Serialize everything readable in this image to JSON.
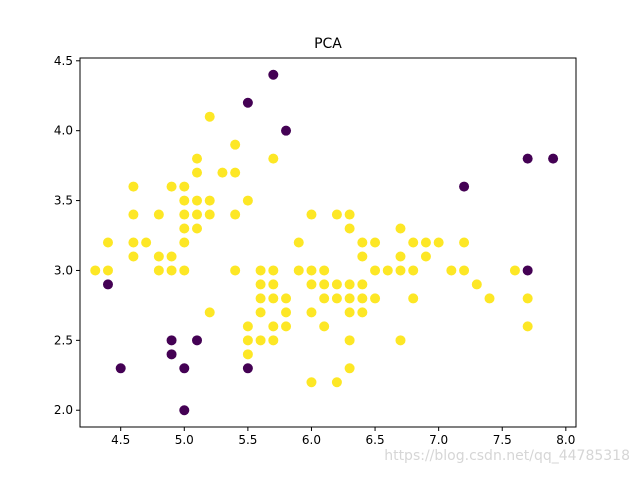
{
  "watermark": "https://blog.csdn.net/qq_44785318",
  "chart_data": {
    "type": "scatter",
    "title": "PCA",
    "xlabel": "",
    "ylabel": "",
    "xlim": [
      4.18,
      8.08
    ],
    "ylim": [
      1.88,
      4.52
    ],
    "xticks": [
      4.5,
      5.0,
      5.5,
      6.0,
      6.5,
      7.0,
      7.5,
      8.0
    ],
    "xtick_labels": [
      "4.5",
      "5.0",
      "5.5",
      "6.0",
      "6.5",
      "7.0",
      "7.5",
      "8.0"
    ],
    "yticks": [
      2.0,
      2.5,
      3.0,
      3.5,
      4.0,
      4.5
    ],
    "ytick_labels": [
      "2.0",
      "2.5",
      "3.0",
      "3.5",
      "4.0",
      "4.5"
    ],
    "grid": false,
    "legend": "none",
    "colors": {
      "class_0": "#440154",
      "class_1": "#fde725"
    },
    "series": [
      {
        "color": "#fde725",
        "points": [
          [
            4.3,
            3.0
          ],
          [
            4.4,
            3.0
          ],
          [
            4.4,
            3.2
          ],
          [
            4.6,
            3.1
          ],
          [
            4.6,
            3.2
          ],
          [
            4.6,
            3.4
          ],
          [
            4.6,
            3.6
          ],
          [
            4.7,
            3.2
          ],
          [
            4.8,
            3.0
          ],
          [
            4.8,
            3.1
          ],
          [
            4.8,
            3.4
          ],
          [
            4.9,
            3.0
          ],
          [
            4.9,
            3.1
          ],
          [
            4.9,
            3.6
          ],
          [
            5.0,
            3.0
          ],
          [
            5.0,
            3.2
          ],
          [
            5.0,
            3.3
          ],
          [
            5.0,
            3.4
          ],
          [
            5.0,
            3.5
          ],
          [
            5.0,
            3.6
          ],
          [
            5.1,
            3.3
          ],
          [
            5.1,
            3.4
          ],
          [
            5.1,
            3.5
          ],
          [
            5.1,
            3.7
          ],
          [
            5.1,
            3.8
          ],
          [
            5.2,
            2.7
          ],
          [
            5.2,
            3.4
          ],
          [
            5.2,
            3.5
          ],
          [
            5.2,
            4.1
          ],
          [
            5.3,
            3.7
          ],
          [
            5.4,
            3.0
          ],
          [
            5.4,
            3.4
          ],
          [
            5.4,
            3.7
          ],
          [
            5.4,
            3.9
          ],
          [
            5.5,
            2.4
          ],
          [
            5.5,
            2.5
          ],
          [
            5.5,
            2.6
          ],
          [
            5.5,
            3.5
          ],
          [
            5.6,
            2.5
          ],
          [
            5.6,
            2.7
          ],
          [
            5.6,
            2.8
          ],
          [
            5.6,
            2.9
          ],
          [
            5.6,
            3.0
          ],
          [
            5.7,
            2.5
          ],
          [
            5.7,
            2.6
          ],
          [
            5.7,
            2.8
          ],
          [
            5.7,
            2.9
          ],
          [
            5.7,
            3.0
          ],
          [
            5.7,
            3.8
          ],
          [
            5.8,
            2.6
          ],
          [
            5.8,
            2.7
          ],
          [
            5.8,
            2.8
          ],
          [
            5.9,
            3.0
          ],
          [
            5.9,
            3.2
          ],
          [
            6.0,
            2.2
          ],
          [
            6.0,
            2.7
          ],
          [
            6.0,
            2.9
          ],
          [
            6.0,
            3.0
          ],
          [
            6.0,
            3.4
          ],
          [
            6.1,
            2.6
          ],
          [
            6.1,
            2.8
          ],
          [
            6.1,
            2.9
          ],
          [
            6.1,
            3.0
          ],
          [
            6.2,
            2.2
          ],
          [
            6.2,
            2.8
          ],
          [
            6.2,
            2.9
          ],
          [
            6.2,
            3.4
          ],
          [
            6.3,
            2.3
          ],
          [
            6.3,
            2.5
          ],
          [
            6.3,
            2.7
          ],
          [
            6.3,
            2.8
          ],
          [
            6.3,
            2.9
          ],
          [
            6.3,
            3.3
          ],
          [
            6.3,
            3.4
          ],
          [
            6.4,
            2.7
          ],
          [
            6.4,
            2.8
          ],
          [
            6.4,
            2.9
          ],
          [
            6.4,
            3.1
          ],
          [
            6.4,
            3.2
          ],
          [
            6.5,
            2.8
          ],
          [
            6.5,
            3.0
          ],
          [
            6.5,
            3.2
          ],
          [
            6.6,
            3.0
          ],
          [
            6.7,
            2.5
          ],
          [
            6.7,
            3.0
          ],
          [
            6.7,
            3.1
          ],
          [
            6.7,
            3.3
          ],
          [
            6.8,
            2.8
          ],
          [
            6.8,
            3.0
          ],
          [
            6.8,
            3.2
          ],
          [
            6.9,
            3.1
          ],
          [
            6.9,
            3.2
          ],
          [
            7.0,
            3.2
          ],
          [
            7.1,
            3.0
          ],
          [
            7.2,
            3.0
          ],
          [
            7.2,
            3.2
          ],
          [
            7.3,
            2.9
          ],
          [
            7.4,
            2.8
          ],
          [
            7.6,
            3.0
          ],
          [
            7.7,
            2.6
          ],
          [
            7.7,
            2.8
          ]
        ]
      },
      {
        "color": "#440154",
        "points": [
          [
            4.4,
            2.9
          ],
          [
            4.5,
            2.3
          ],
          [
            4.9,
            2.4
          ],
          [
            4.9,
            2.5
          ],
          [
            5.0,
            2.0
          ],
          [
            5.0,
            2.3
          ],
          [
            5.1,
            2.5
          ],
          [
            5.5,
            2.3
          ],
          [
            5.5,
            4.2
          ],
          [
            5.7,
            4.4
          ],
          [
            5.8,
            4.0
          ],
          [
            7.2,
            3.6
          ],
          [
            7.7,
            3.0
          ],
          [
            7.7,
            3.8
          ],
          [
            7.9,
            3.8
          ]
        ]
      }
    ]
  }
}
